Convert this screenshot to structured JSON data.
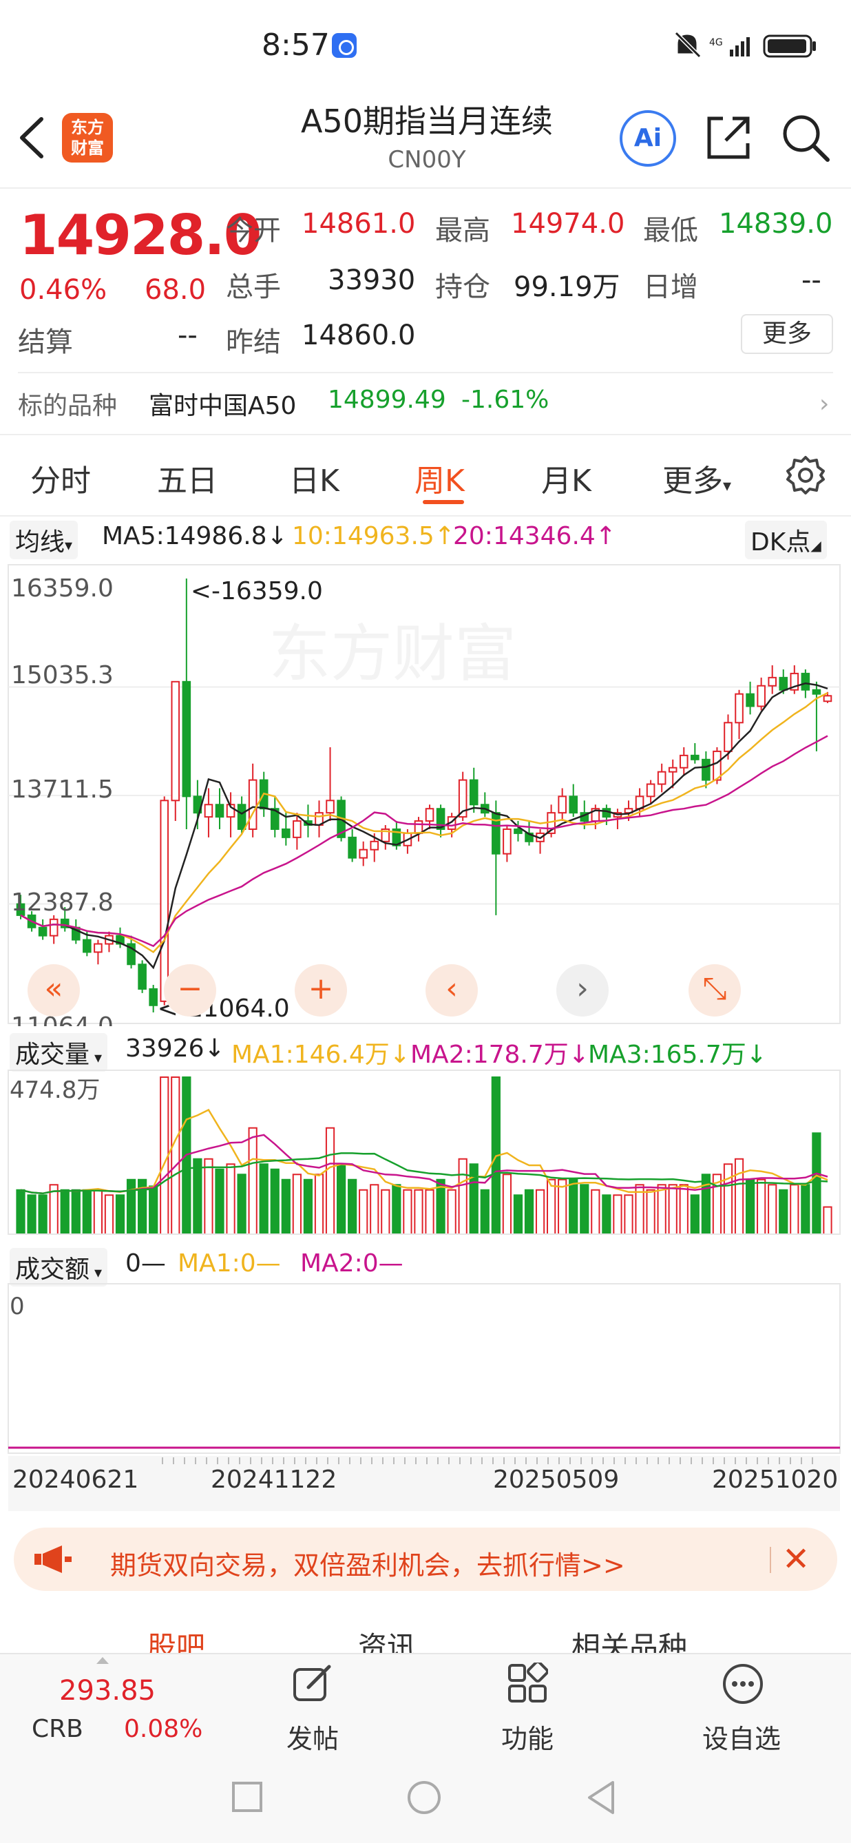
{
  "status": {
    "time": "8:57"
  },
  "header": {
    "logo_text_line1": "东方",
    "logo_text_line2": "财富",
    "title": "A50期指当月连续",
    "code": "CN00Y",
    "ai_label": "Ai"
  },
  "quote": {
    "price": "14928.0",
    "change_pct": "0.46%",
    "change_amt": "68.0",
    "open_label": "今开",
    "open": "14861.0",
    "high_label": "最高",
    "high": "14974.0",
    "low_label": "最低",
    "low": "14839.0",
    "volume_label": "总手",
    "volume": "33930",
    "oi_label": "持仓",
    "oi": "99.19万",
    "daily_inc_label": "日增",
    "daily_inc": "--",
    "settle_label": "结算",
    "settle": "--",
    "prev_settle_label": "昨结",
    "prev_settle": "14860.0",
    "more_label": "更多"
  },
  "underlying": {
    "label": "标的品种",
    "name": "富时中国A50",
    "value": "14899.49",
    "pct": "-1.61%"
  },
  "tabs": [
    "分时",
    "五日",
    "日K",
    "周K",
    "月K",
    "更多"
  ],
  "active_tab": "周K",
  "indicators": {
    "ma_button": "均线",
    "ma5": "MA5:14986.8↓",
    "ma10": "10:14963.5↑",
    "ma20": "20:14346.4↑",
    "dk_button": "DK点"
  },
  "kline": {
    "y_labels": [
      "16359.0",
      "15035.3",
      "13711.5",
      "12387.8",
      "11064.0"
    ],
    "max_marker": "<-16359.0",
    "min_marker": "<-11064.0",
    "colors": {
      "up": "#e0222a",
      "down": "#16a02c",
      "ma5": "#222222",
      "ma10": "#f0b41e",
      "ma20": "#c8148c"
    },
    "nav_buttons": [
      "«",
      "−",
      "+",
      "‹",
      "›",
      "⤡"
    ]
  },
  "volume": {
    "button": "成交量",
    "value": "33926↓",
    "ma1": "MA1:146.4万↓",
    "ma2": "MA2:178.7万↓",
    "ma3": "MA3:165.7万↓",
    "y_label": "474.8万"
  },
  "amount": {
    "button": "成交额",
    "value": "0—",
    "ma1": "MA1:0—",
    "ma2": "MA2:0—",
    "y_label": "0"
  },
  "dates": [
    "20240621",
    "20241122",
    "20250509",
    "20251020"
  ],
  "banner": {
    "text": "期货双向交易，双倍盈利机会，去抓行情>>"
  },
  "bottom_tabs": [
    "股吧",
    "资讯",
    "相关品种"
  ],
  "toolbar": {
    "crb_value": "293.85",
    "crb_name": "CRB",
    "crb_pct": "0.08%",
    "post": "发帖",
    "function": "功能",
    "watchlist": "设自选"
  },
  "chart_data": {
    "type": "candlestick",
    "period": "weekly",
    "ylim": [
      11064.0,
      16359.0
    ],
    "x_ticks": [
      "20240621",
      "20241122",
      "20250509",
      "20251020"
    ],
    "candles": [
      [
        12387,
        12500,
        12200,
        12250
      ],
      [
        12250,
        12300,
        12050,
        12100
      ],
      [
        12100,
        12200,
        11950,
        12000
      ],
      [
        12000,
        12250,
        11900,
        12200
      ],
      [
        12200,
        12350,
        12050,
        12100
      ],
      [
        12100,
        12200,
        11900,
        11950
      ],
      [
        11950,
        12050,
        11750,
        11800
      ],
      [
        11800,
        11950,
        11650,
        11900
      ],
      [
        11900,
        12050,
        11800,
        12000
      ],
      [
        12000,
        12100,
        11850,
        11900
      ],
      [
        11900,
        12000,
        11600,
        11650
      ],
      [
        11650,
        11700,
        11300,
        11350
      ],
      [
        11350,
        11400,
        11064,
        11150
      ],
      [
        11200,
        13700,
        11150,
        13650
      ],
      [
        13650,
        15100,
        13400,
        15100
      ],
      [
        15100,
        16359,
        13300,
        13700
      ],
      [
        13700,
        13900,
        13300,
        13500
      ],
      [
        13450,
        13800,
        13200,
        13600
      ],
      [
        13600,
        13800,
        13300,
        13450
      ],
      [
        13450,
        13750,
        13200,
        13600
      ],
      [
        13600,
        13700,
        13250,
        13300
      ],
      [
        13300,
        14100,
        13200,
        13900
      ],
      [
        13900,
        14000,
        13450,
        13550
      ],
      [
        13550,
        13700,
        13200,
        13300
      ],
      [
        13300,
        13500,
        13100,
        13200
      ],
      [
        13200,
        13500,
        13050,
        13400
      ],
      [
        13400,
        13600,
        13200,
        13350
      ],
      [
        13350,
        13650,
        13200,
        13500
      ],
      [
        13500,
        14300,
        13400,
        13650
      ],
      [
        13650,
        13700,
        13150,
        13200
      ],
      [
        13200,
        13300,
        12900,
        12950
      ],
      [
        12950,
        13150,
        12850,
        13050
      ],
      [
        13050,
        13250,
        12900,
        13150
      ],
      [
        13150,
        13350,
        13050,
        13300
      ],
      [
        13300,
        13400,
        13050,
        13100
      ],
      [
        13100,
        13300,
        13000,
        13250
      ],
      [
        13250,
        13450,
        13150,
        13400
      ],
      [
        13400,
        13600,
        13300,
        13550
      ],
      [
        13550,
        13600,
        13200,
        13300
      ],
      [
        13300,
        13500,
        13200,
        13450
      ],
      [
        13450,
        14000,
        13400,
        13900
      ],
      [
        13900,
        14050,
        13500,
        13600
      ],
      [
        13600,
        13750,
        13450,
        13500
      ],
      [
        13500,
        13650,
        12250,
        13000
      ],
      [
        13000,
        13350,
        12900,
        13300
      ],
      [
        13300,
        13400,
        13150,
        13250
      ],
      [
        13250,
        13400,
        13100,
        13150
      ],
      [
        13150,
        13300,
        13000,
        13250
      ],
      [
        13250,
        13600,
        13200,
        13500
      ],
      [
        13500,
        13800,
        13400,
        13700
      ],
      [
        13700,
        13850,
        13450,
        13500
      ],
      [
        13500,
        13650,
        13300,
        13400
      ],
      [
        13400,
        13600,
        13300,
        13550
      ],
      [
        13550,
        13600,
        13350,
        13450
      ],
      [
        13450,
        13550,
        13300,
        13500
      ],
      [
        13500,
        13650,
        13400,
        13550
      ],
      [
        13550,
        13800,
        13450,
        13700
      ],
      [
        13700,
        13900,
        13600,
        13850
      ],
      [
        13850,
        14100,
        13750,
        14000
      ],
      [
        14000,
        14150,
        13800,
        14050
      ],
      [
        14050,
        14300,
        13950,
        14200
      ],
      [
        14200,
        14350,
        14100,
        14150
      ],
      [
        14150,
        14250,
        13800,
        13900
      ],
      [
        13900,
        14300,
        13850,
        14250
      ],
      [
        14250,
        14700,
        14150,
        14600
      ],
      [
        14600,
        15000,
        14400,
        14950
      ],
      [
        14950,
        15100,
        14700,
        14800
      ],
      [
        14800,
        15150,
        14750,
        15050
      ],
      [
        15050,
        15300,
        14950,
        15150
      ],
      [
        15150,
        15250,
        14950,
        15000
      ],
      [
        15000,
        15300,
        14950,
        15200
      ],
      [
        15200,
        15250,
        14900,
        15000
      ],
      [
        15000,
        15100,
        14250,
        14950
      ],
      [
        14861,
        14974,
        14839,
        14928
      ]
    ],
    "volume_ylim": [
      0,
      474.8
    ],
    "volume_unit": "万"
  }
}
